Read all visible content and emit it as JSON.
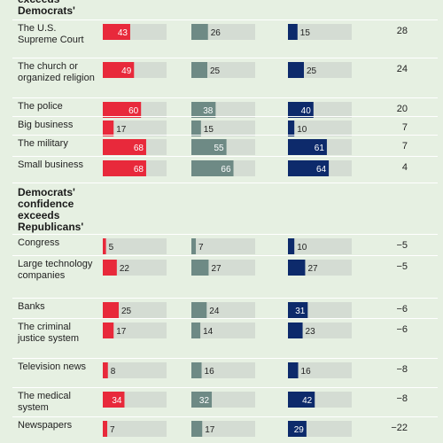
{
  "chart_data": {
    "type": "bar",
    "colors": [
      "#e8293b",
      "#6e8a85",
      "#0d2a6b"
    ],
    "track_color": "#d4dcd3",
    "scale_max": 100,
    "groups": [
      {
        "heading": "exceeds Democrats'",
        "rows": [
          {
            "label": "The U.S. Supreme Court",
            "values": [
              43,
              26,
              15
            ],
            "diff": "28"
          },
          {
            "label": "The church or organized religion",
            "values": [
              49,
              25,
              25
            ],
            "diff": "24"
          },
          {
            "label": "The police",
            "values": [
              60,
              38,
              40
            ],
            "diff": "20"
          },
          {
            "label": "Big business",
            "values": [
              17,
              15,
              10
            ],
            "diff": "7"
          },
          {
            "label": "The military",
            "values": [
              68,
              55,
              61
            ],
            "diff": "7"
          },
          {
            "label": "Small business",
            "values": [
              68,
              66,
              64
            ],
            "diff": "4"
          }
        ]
      },
      {
        "heading": "Democrats' confidence exceeds Republicans'",
        "rows": [
          {
            "label": "Congress",
            "values": [
              5,
              7,
              10
            ],
            "diff": "−5"
          },
          {
            "label": "Large technology companies",
            "values": [
              22,
              27,
              27
            ],
            "diff": "−5"
          },
          {
            "label": "Banks",
            "values": [
              25,
              24,
              31
            ],
            "diff": "−6"
          },
          {
            "label": "The criminal justice system",
            "values": [
              17,
              14,
              23
            ],
            "diff": "−6"
          },
          {
            "label": "Television news",
            "values": [
              8,
              16,
              16
            ],
            "diff": "−8"
          },
          {
            "label": "The medical system",
            "values": [
              34,
              32,
              42
            ],
            "diff": "−8"
          },
          {
            "label": "Newspapers",
            "values": [
              7,
              17,
              29
            ],
            "diff": "−22"
          }
        ]
      }
    ]
  }
}
